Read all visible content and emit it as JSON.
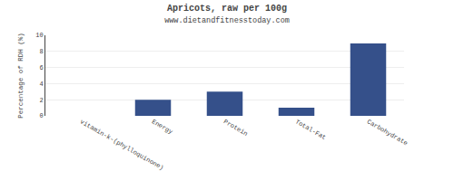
{
  "chart_data": {
    "type": "bar",
    "title": "Apricots, raw per 100g",
    "subtitle": "www.dietandfitnesstoday.com",
    "categories": [
      "vitamin-k-(phylloquinone)",
      "Energy",
      "Protein",
      "Total-Fat",
      "Carbohydrate"
    ],
    "values": [
      0,
      2,
      3,
      1,
      9
    ],
    "color": "#35508a",
    "ylabel": "Percentage of RDH (%)",
    "ylim": [
      0,
      10
    ],
    "yticks": [
      0,
      2,
      4,
      6,
      8,
      10
    ],
    "grid": true
  }
}
